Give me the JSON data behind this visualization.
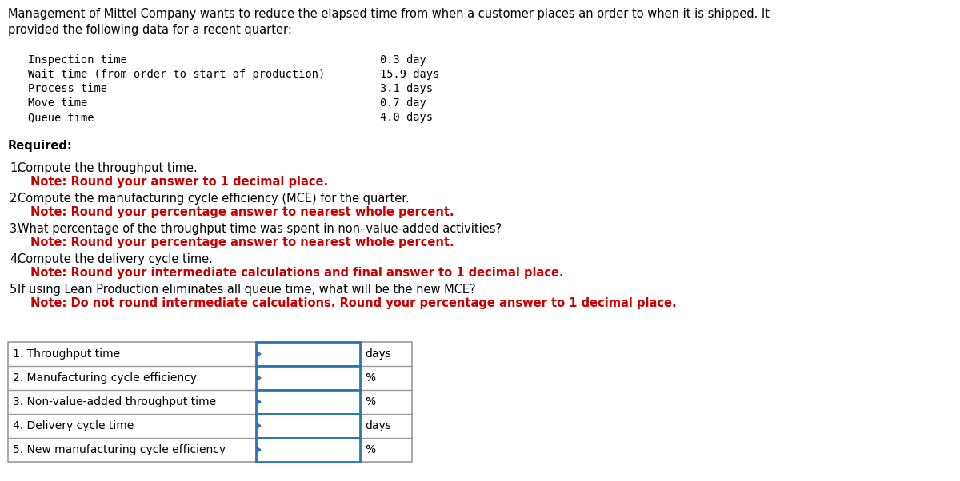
{
  "title_line1": "Management of Mittel Company wants to reduce the elapsed time from when a customer places an order to when it is shipped. It",
  "title_line2": "provided the following data for a recent quarter:",
  "data_items": [
    {
      "label": "Inspection time",
      "value": "0.3 day"
    },
    {
      "label": "Wait time (from order to start of production)",
      "value": "15.9 days"
    },
    {
      "label": "Process time",
      "value": "3.1 days"
    },
    {
      "label": "Move time",
      "value": "0.7 day"
    },
    {
      "label": "Queue time",
      "value": "4.0 days"
    }
  ],
  "required_label": "Required:",
  "questions": [
    {
      "number": "1.",
      "text": "Compute the throughput time.",
      "note": "Note: Round your answer to 1 decimal place."
    },
    {
      "number": "2.",
      "text": "Compute the manufacturing cycle efficiency (MCE) for the quarter.",
      "note": "Note: Round your percentage answer to nearest whole percent."
    },
    {
      "number": "3.",
      "text": "What percentage of the throughput time was spent in non–value-added activities?",
      "note": "Note: Round your percentage answer to nearest whole percent."
    },
    {
      "number": "4.",
      "text": "Compute the delivery cycle time.",
      "note": "Note: Round your intermediate calculations and final answer to 1 decimal place."
    },
    {
      "number": "5.",
      "text": "If using Lean Production eliminates all queue time, what will be the new MCE?",
      "note": "Note: Do not round intermediate calculations. Round your percentage answer to 1 decimal place."
    }
  ],
  "table_rows": [
    {
      "label": "1. Throughput time",
      "unit": "days"
    },
    {
      "label": "2. Manufacturing cycle efficiency",
      "unit": "%"
    },
    {
      "label": "3. Non-value-added throughput time",
      "unit": "%"
    },
    {
      "label": "4. Delivery cycle time",
      "unit": "days"
    },
    {
      "label": "5. New manufacturing cycle efficiency",
      "unit": "%"
    }
  ],
  "note_color": "#CC0000",
  "table_border_color": "#999999",
  "input_border_color": "#2E75B6",
  "bg_color": "#FFFFFF",
  "text_color": "#000000"
}
